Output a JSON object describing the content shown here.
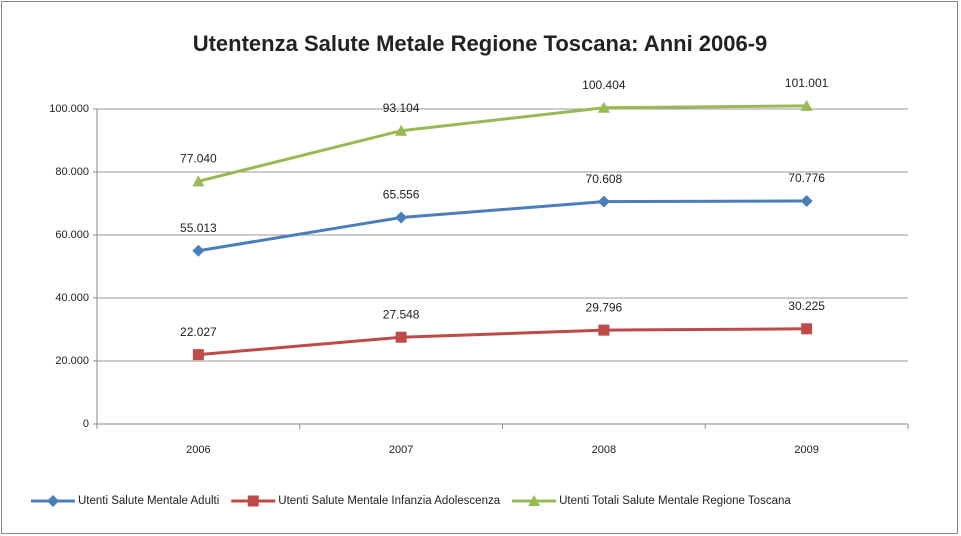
{
  "chart_data": {
    "type": "line",
    "title": "Utentenza Salute Metale Regione Toscana: Anni 2006-9",
    "categories": [
      "2006",
      "2007",
      "2008",
      "2009"
    ],
    "series": [
      {
        "name": "Utenti Salute Mentale Adulti",
        "color": "#4a7ebb",
        "marker": "diamond",
        "values": [
          55013,
          65556,
          70608,
          70776
        ],
        "value_labels": [
          "55.013",
          "65.556",
          "70.608",
          "70.776"
        ]
      },
      {
        "name": "Utenti Salute Mentale Infanzia Adolescenza",
        "color": "#be4b48",
        "marker": "square",
        "values": [
          22027,
          27548,
          29796,
          30225
        ],
        "value_labels": [
          "22.027",
          "27.548",
          "29.796",
          "30.225"
        ]
      },
      {
        "name": "Utenti Totali Salute Mentale Regione Toscana",
        "color": "#98b954",
        "marker": "triangle",
        "values": [
          77040,
          93104,
          100404,
          101001
        ],
        "value_labels": [
          "77.040",
          "93.104",
          "100.404",
          "101.001"
        ]
      }
    ],
    "ylim": [
      0,
      100000
    ],
    "yticks": [
      0,
      {
        "value": 20000,
        "label": "20.000"
      },
      {
        "value": 40000,
        "label": "40.000"
      },
      {
        "value": 60000,
        "label": "60.000"
      },
      {
        "value": 80000,
        "label": "80.000"
      },
      {
        "value": 100000,
        "label": "100.000"
      }
    ],
    "grid": true,
    "legend": "bottom"
  }
}
